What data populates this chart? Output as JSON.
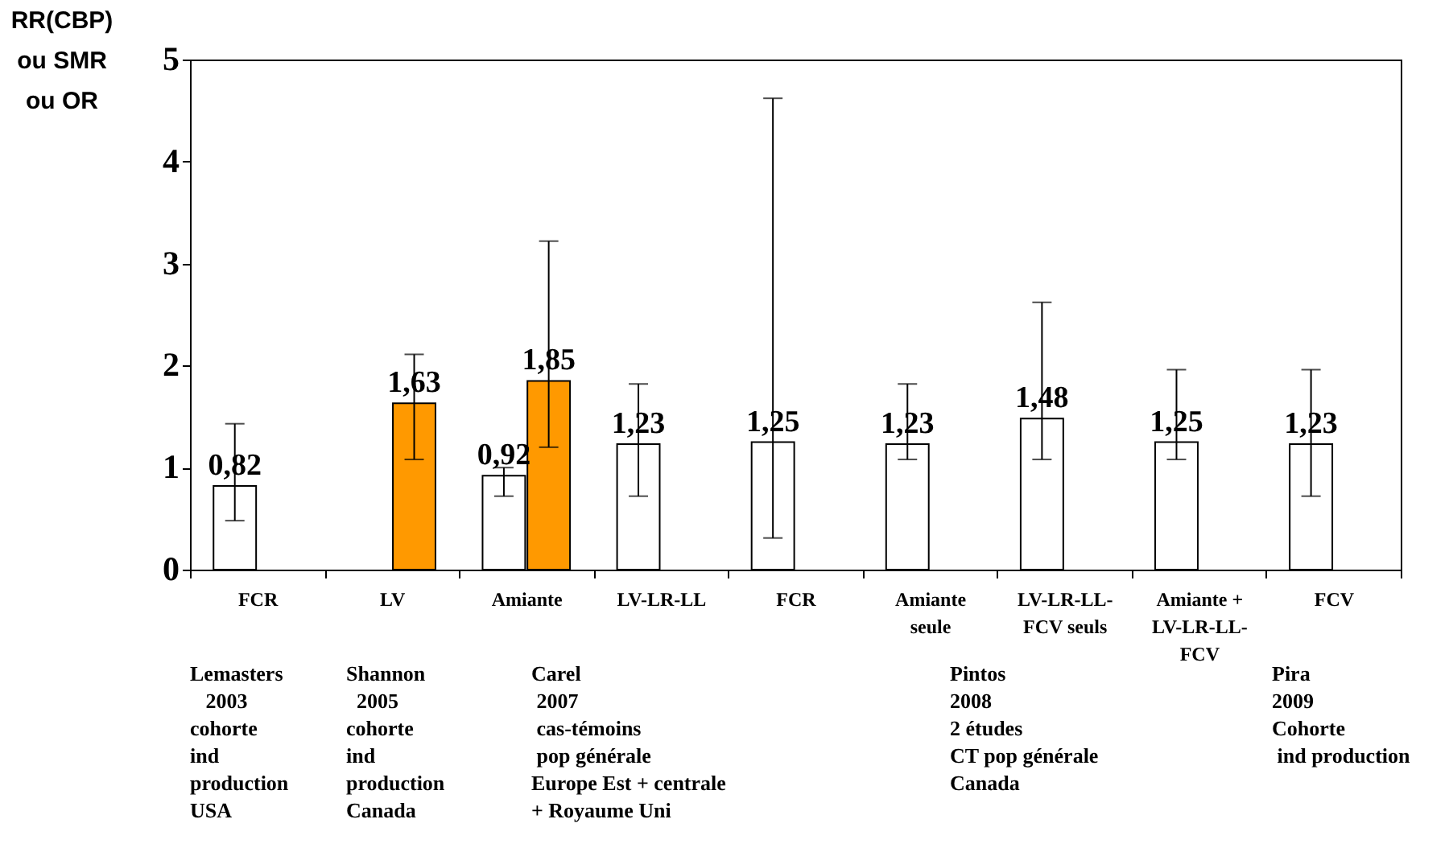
{
  "chart_data": {
    "type": "bar",
    "ylabel": "RR(CBP)\nou SMR\nou OR",
    "categories": [
      "FCR",
      "LV",
      "Amiante",
      "LV-LR-LL",
      "FCR",
      "Amiante\nseule",
      "LV-LR-LL-\nFCV seuls",
      "Amiante +\nLV-LR-LL-\nFCV",
      "FCV"
    ],
    "series": [
      {
        "color": "#ffffff",
        "values": [
          0.82,
          null,
          0.92,
          1.23,
          1.25,
          1.23,
          1.48,
          1.25,
          1.23
        ],
        "errors": [
          [
            0.48,
            1.43
          ],
          null,
          [
            0.72,
            1.0
          ],
          [
            0.72,
            1.82
          ],
          [
            0.31,
            4.62
          ],
          [
            1.08,
            1.82
          ],
          [
            1.08,
            2.62
          ],
          [
            1.08,
            1.96
          ],
          [
            0.72,
            1.96
          ]
        ],
        "value_labels": [
          "0,82",
          null,
          "0,92",
          "1,23",
          "1,25",
          "1,23",
          "1,48",
          "1,25",
          "1,23"
        ]
      },
      {
        "color": "#ff9900",
        "values": [
          null,
          1.63,
          1.85,
          null,
          null,
          null,
          null,
          null,
          null
        ],
        "errors": [
          null,
          [
            1.08,
            2.11
          ],
          [
            1.2,
            3.22
          ],
          null,
          null,
          null,
          null,
          null,
          null
        ],
        "value_labels": [
          null,
          "1,63",
          "1,85",
          null,
          null,
          null,
          null,
          null,
          null
        ]
      }
    ],
    "ylim": [
      0,
      5
    ],
    "yticks": [
      0,
      1,
      2,
      3,
      4,
      5
    ],
    "grid": false,
    "legend": false,
    "annotations": [
      "Lemasters\n   2003\ncohorte\nind\nproduction\nUSA",
      "Shannon\n  2005\ncohorte\nind\nproduction\nCanada",
      "Carel\n 2007\n cas-témoins\n pop générale\nEurope Est + centrale\n+ Royaume Uni",
      "Pintos\n2008\n2 études\nCT pop générale\nCanada",
      "Pira\n2009\nCohorte\n ind production"
    ]
  }
}
